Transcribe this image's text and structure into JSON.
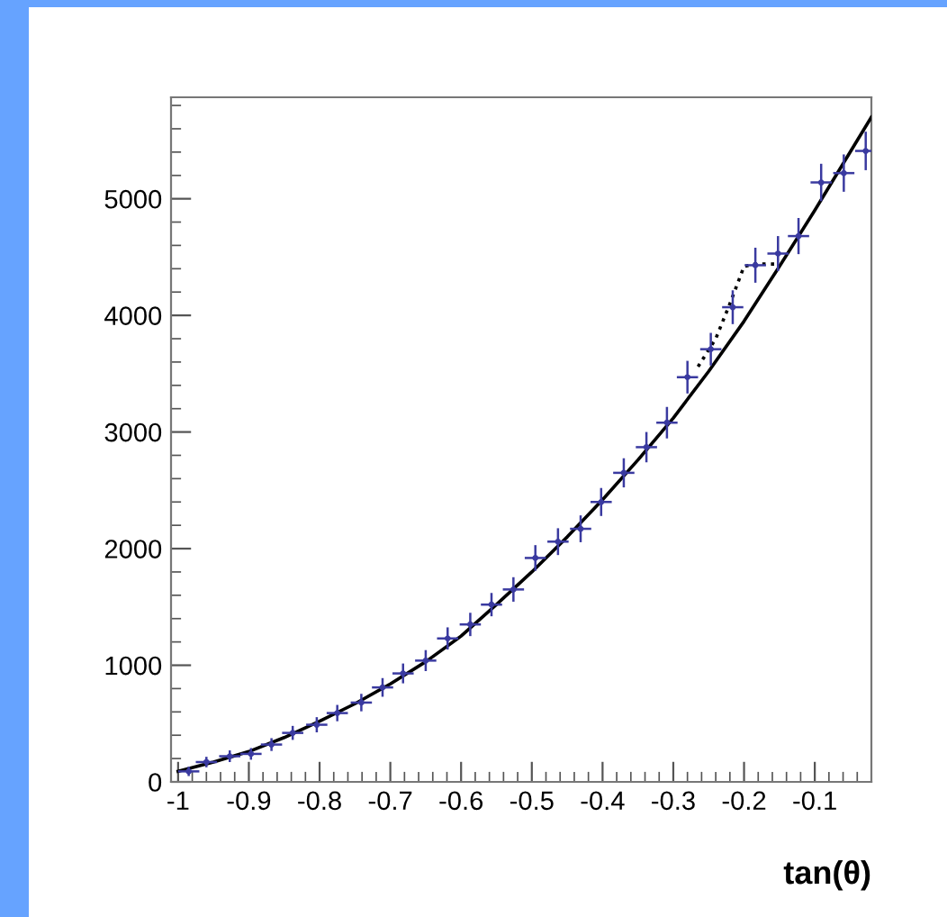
{
  "chart_data": {
    "type": "scatter",
    "xlabel": "tan(θ)",
    "xlim": [
      -1.01,
      -0.02
    ],
    "ylim": [
      0,
      5870
    ],
    "xticks": [
      -1,
      -0.9,
      -0.8,
      -0.7,
      -0.6,
      -0.5,
      -0.4,
      -0.3,
      -0.2,
      -0.1
    ],
    "yticks": [
      0,
      1000,
      2000,
      3000,
      4000,
      5000
    ],
    "grid": false,
    "series": [
      {
        "color": "#3a3aa0",
        "x": [
          -0.985,
          -0.96,
          -0.927,
          -0.897,
          -0.868,
          -0.838,
          -0.804,
          -0.775,
          -0.741,
          -0.711,
          -0.682,
          -0.65,
          -0.619,
          -0.587,
          -0.557,
          -0.526,
          -0.495,
          -0.463,
          -0.431,
          -0.402,
          -0.37,
          -0.338,
          -0.309,
          -0.28,
          -0.247,
          -0.216,
          -0.184,
          -0.152,
          -0.123,
          -0.091,
          -0.059,
          -0.028
        ],
        "values": [
          90,
          170,
          220,
          240,
          320,
          420,
          490,
          590,
          680,
          810,
          930,
          1040,
          1230,
          1350,
          1520,
          1650,
          1920,
          2060,
          2170,
          2400,
          2650,
          2870,
          3080,
          3470,
          3710,
          4070,
          4430,
          4530,
          4680,
          5140,
          5220,
          5410
        ],
        "errors": [
          40,
          45,
          50,
          50,
          55,
          60,
          65,
          70,
          75,
          80,
          85,
          90,
          95,
          100,
          100,
          105,
          110,
          115,
          115,
          120,
          125,
          130,
          135,
          140,
          140,
          145,
          150,
          150,
          155,
          160,
          160,
          165
        ],
        "xerrors": [
          0.015,
          0.015,
          0.015,
          0.015,
          0.015,
          0.015,
          0.015,
          0.015,
          0.015,
          0.015,
          0.015,
          0.015,
          0.015,
          0.015,
          0.015,
          0.015,
          0.015,
          0.015,
          0.015,
          0.015,
          0.015,
          0.015,
          0.015,
          0.015,
          0.015,
          0.015,
          0.015,
          0.015,
          0.015,
          0.015,
          0.015,
          0.015
        ]
      },
      {
        "type": "line",
        "color": "#000000",
        "line_style": "solid",
        "x": [
          -1.0,
          -0.95,
          -0.9,
          -0.85,
          -0.8,
          -0.75,
          -0.7,
          -0.65,
          -0.6,
          -0.55,
          -0.5,
          -0.45,
          -0.4,
          -0.35,
          -0.3,
          -0.25,
          -0.2,
          -0.15,
          -0.1,
          -0.06,
          -0.02
        ],
        "values": [
          90,
          170,
          260,
          380,
          520,
          670,
          840,
          1030,
          1250,
          1520,
          1800,
          2100,
          2420,
          2760,
          3120,
          3520,
          3950,
          4420,
          4900,
          5300,
          5700
        ]
      },
      {
        "type": "line",
        "color": "#000000",
        "line_style": "dotted",
        "x": [
          -0.265,
          -0.24,
          -0.22,
          -0.2,
          -0.185,
          -0.15
        ],
        "values": [
          3560,
          3800,
          4100,
          4420,
          4440,
          4440
        ]
      }
    ]
  }
}
